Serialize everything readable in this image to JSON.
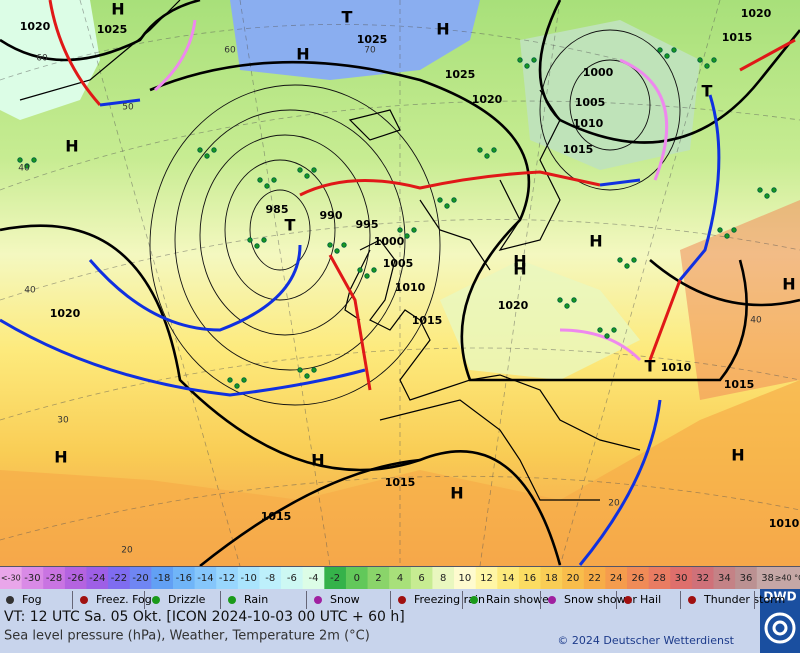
{
  "map": {
    "pressure_labels": [
      "1020",
      "1025",
      "1025",
      "1025",
      "1020",
      "1020",
      "1015",
      "1000",
      "1005",
      "1010",
      "1015",
      "985",
      "990",
      "995",
      "1000",
      "1005",
      "1010",
      "1015",
      "1020",
      "1020",
      "1010",
      "1015",
      "1015",
      "1015",
      "1010"
    ],
    "centers": [
      "H",
      "H",
      "H",
      "H",
      "H",
      "H",
      "H",
      "H",
      "H",
      "H",
      "H",
      "H",
      "T",
      "T",
      "T",
      "T"
    ],
    "grid_labels": [
      "60",
      "50",
      "40",
      "40",
      "30",
      "20",
      "20",
      "40",
      "60",
      "70"
    ]
  },
  "colorbar": {
    "labels": [
      "<-30",
      "-30",
      "-28",
      "-26",
      "-24",
      "-22",
      "-20",
      "-18",
      "-16",
      "-14",
      "-12",
      "-10",
      "-8",
      "-6",
      "-4",
      "-2",
      "0",
      "2",
      "4",
      "6",
      "8",
      "10",
      "12",
      "14",
      "16",
      "18",
      "20",
      "22",
      "24",
      "26",
      "28",
      "30",
      "32",
      "34",
      "36",
      "38",
      "≥40 °C"
    ],
    "colors": [
      "#e9a6ea",
      "#d98ae6",
      "#c974e2",
      "#b463e0",
      "#9e5fe6",
      "#7f6cf0",
      "#6f86f3",
      "#62a0f4",
      "#70b5f8",
      "#85c6fb",
      "#98d6fd",
      "#aae4fd",
      "#bdf0fb",
      "#cdf8f3",
      "#dcfde6",
      "#35b24a",
      "#62c85a",
      "#8ad46a",
      "#a8e07a",
      "#c7ec92",
      "#e9f7bf",
      "#fffbcf",
      "#fff6a6",
      "#fdea7c",
      "#fbdc62",
      "#f9cd55",
      "#f8bd4b",
      "#f7ad48",
      "#f59c4d",
      "#f08b57",
      "#e97c62",
      "#de6f6c",
      "#cf7179",
      "#c48286",
      "#bb9192",
      "#c5a7a6"
    ]
  },
  "weather_legend": [
    "Fog",
    "Freez. Fog",
    "Drizzle",
    "Rain",
    "Snow",
    "Freezing rain",
    "Rain shower",
    "Snow shower",
    "Hail",
    "Thunder storm"
  ],
  "footer": {
    "valid_time": "VT: 12 UTC Sa.  05 Okt. [ICON 2024-10-03  00 UTC + 60 h]",
    "description": "Sea level pressure (hPa), Weather, Temperature 2m (°C)",
    "copyright": "© 2024 Deutscher Wetterdienst",
    "logo": "DWD"
  }
}
